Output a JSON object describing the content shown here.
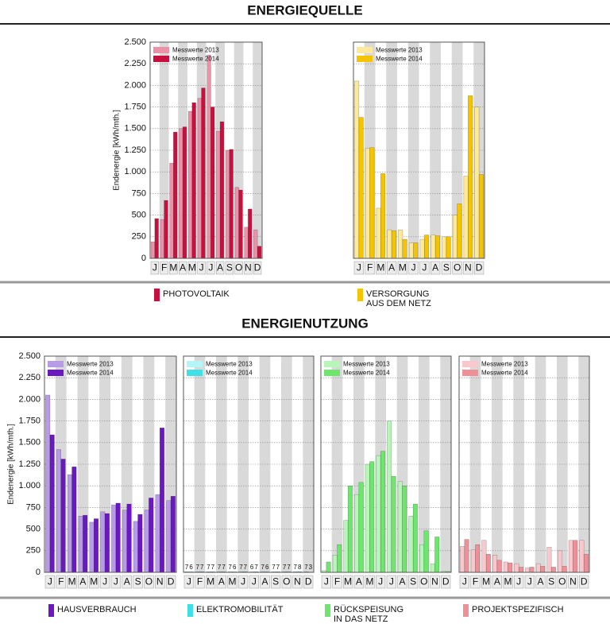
{
  "sections": [
    {
      "title": "ENERGIEQUELLE"
    },
    {
      "title": "ENERGIENUTZUNG"
    }
  ],
  "chart_data": [
    {
      "type": "bar",
      "ylabel": "Endenergie [kWh/mth.]",
      "caption": [
        "PHOTOVOLTAIK"
      ],
      "legend": "upper left",
      "grid": true,
      "categories": [
        "J",
        "F",
        "M",
        "A",
        "M",
        "J",
        "J",
        "A",
        "S",
        "O",
        "N",
        "D"
      ],
      "series": [
        {
          "name": "Messwerte 2013",
          "color": "#eb91a8",
          "values": [
            190,
            450,
            1100,
            1500,
            1700,
            1850,
            2350,
            1470,
            1250,
            820,
            360,
            330
          ]
        },
        {
          "name": "Messwerte 2014",
          "color": "#c8103e",
          "values": [
            460,
            670,
            1460,
            1520,
            1800,
            1970,
            1750,
            1580,
            1260,
            790,
            570,
            140
          ]
        }
      ],
      "ylim": [
        0,
        2500
      ],
      "yticks": [
        0,
        250,
        500,
        750,
        {
          "value": 1000,
          "label": "1.000"
        },
        {
          "value": 1250,
          "label": "1.250"
        },
        {
          "value": 1500,
          "label": "1.500"
        },
        {
          "value": 1750,
          "label": "1.750"
        },
        {
          "value": 2000,
          "label": "2.000"
        },
        {
          "value": 2250,
          "label": "2.250"
        },
        {
          "value": 2500,
          "label": "2.500"
        }
      ]
    },
    {
      "type": "bar",
      "caption": [
        "VERSORGUNG",
        "AUS DEM NETZ"
      ],
      "legend": "upper left",
      "grid": true,
      "categories": [
        "J",
        "F",
        "M",
        "A",
        "M",
        "J",
        "J",
        "A",
        "S",
        "O",
        "N",
        "D"
      ],
      "series": [
        {
          "name": "Messwerte 2013",
          "color": "#fde99a",
          "values": [
            2050,
            1270,
            580,
            330,
            330,
            180,
            220,
            270,
            250,
            500,
            950,
            1750
          ]
        },
        {
          "name": "Messwerte 2014",
          "color": "#f5c400",
          "values": [
            1630,
            1280,
            980,
            320,
            220,
            180,
            270,
            260,
            250,
            630,
            1880,
            970
          ]
        }
      ],
      "ylim": [
        0,
        2500
      ],
      "yticks": [
        0,
        250,
        500,
        750,
        1000,
        1250,
        1500,
        1750,
        2000,
        2250,
        2500
      ],
      "ytick_labels": false
    },
    {
      "type": "bar",
      "ylabel": "Endenergie [kWh/mth.]",
      "caption": [
        "HAUSVERBRAUCH"
      ],
      "legend": "upper left",
      "grid": true,
      "categories": [
        "J",
        "F",
        "M",
        "A",
        "M",
        "J",
        "J",
        "A",
        "S",
        "O",
        "N",
        "D"
      ],
      "series": [
        {
          "name": "Messwerte 2013",
          "color": "#b89be6",
          "values": [
            2050,
            1420,
            1130,
            650,
            580,
            700,
            780,
            720,
            590,
            720,
            900,
            830
          ]
        },
        {
          "name": "Messwerte 2014",
          "color": "#6a18c0",
          "values": [
            1590,
            1310,
            1220,
            660,
            620,
            680,
            800,
            790,
            670,
            860,
            1670,
            880
          ]
        }
      ],
      "ylim": [
        0,
        2500
      ],
      "yticks": [
        0,
        250,
        500,
        750,
        {
          "value": 1000,
          "label": "1.000"
        },
        {
          "value": 1250,
          "label": "1.250"
        },
        {
          "value": 1500,
          "label": "1.500"
        },
        {
          "value": 1750,
          "label": "1.750"
        },
        {
          "value": 2000,
          "label": "2.000"
        },
        {
          "value": 2250,
          "label": "2.250"
        },
        {
          "value": 2500,
          "label": "2.500"
        }
      ]
    },
    {
      "type": "bar",
      "caption": [
        "ELEKTROMOBILITÄT"
      ],
      "legend": "upper left",
      "grid": true,
      "show_value_labels": true,
      "categories": [
        "J",
        "F",
        "M",
        "A",
        "M",
        "J",
        "J",
        "A",
        "S",
        "O",
        "N",
        "D"
      ],
      "series": [
        {
          "name": "Messwerte 2013",
          "color": "#b5f5f5",
          "values": [
            7,
            7,
            7,
            7,
            7,
            7,
            6,
            7,
            7,
            7,
            7,
            7
          ]
        },
        {
          "name": "Messwerte 2014",
          "color": "#40e0e8",
          "values": [
            6,
            7,
            7,
            7,
            6,
            7,
            7,
            6,
            7,
            7,
            8,
            3
          ]
        }
      ],
      "ylim": [
        0,
        2500
      ],
      "yticks": [
        0,
        250,
        500,
        750,
        1000,
        1250,
        1500,
        1750,
        2000,
        2250,
        2500
      ],
      "ytick_labels": false
    },
    {
      "type": "bar",
      "caption": [
        "RÜCKSPEISUNG",
        "IN DAS NETZ"
      ],
      "legend": "upper left",
      "grid": true,
      "categories": [
        "J",
        "F",
        "M",
        "A",
        "M",
        "J",
        "J",
        "A",
        "S",
        "O",
        "N",
        "D"
      ],
      "series": [
        {
          "name": "Messwerte 2013",
          "color": "#b8f5b8",
          "values": [
            20,
            200,
            600,
            900,
            1250,
            1350,
            1750,
            1050,
            650,
            320,
            100,
            10
          ]
        },
        {
          "name": "Messwerte 2014",
          "color": "#6ee66e",
          "values": [
            120,
            320,
            1000,
            1040,
            1280,
            1400,
            1110,
            1000,
            790,
            480,
            410,
            10
          ]
        }
      ],
      "ylim": [
        0,
        2500
      ],
      "yticks": [
        0,
        250,
        500,
        750,
        1000,
        1250,
        1500,
        1750,
        2000,
        2250,
        2500
      ],
      "ytick_labels": false
    },
    {
      "type": "bar",
      "caption": [
        "PROJEKTSPEZIFISCH"
      ],
      "legend": "upper left",
      "grid": true,
      "categories": [
        "J",
        "F",
        "M",
        "A",
        "M",
        "J",
        "J",
        "A",
        "S",
        "O",
        "N",
        "D"
      ],
      "series": [
        {
          "name": "Messwerte 2013",
          "color": "#f8c8cc",
          "values": [
            300,
            260,
            370,
            200,
            120,
            100,
            50,
            100,
            290,
            250,
            370,
            370
          ]
        },
        {
          "name": "Messwerte 2014",
          "color": "#ee9098",
          "values": [
            380,
            320,
            210,
            140,
            110,
            60,
            60,
            70,
            60,
            70,
            370,
            210
          ]
        }
      ],
      "ylim": [
        0,
        2500
      ],
      "yticks": [
        0,
        250,
        500,
        750,
        1000,
        1250,
        1500,
        1750,
        2000,
        2250,
        2500
      ],
      "ytick_labels": false
    }
  ]
}
